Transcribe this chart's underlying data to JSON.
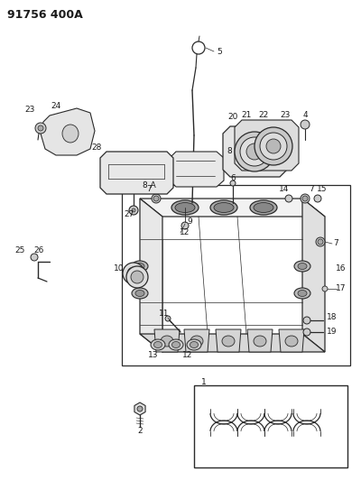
{
  "title": "91756 400A",
  "bg_color": "#ffffff",
  "line_color": "#2a2a2a",
  "label_color": "#1a1a1a",
  "fig_width": 4.0,
  "fig_height": 5.33,
  "dpi": 100
}
